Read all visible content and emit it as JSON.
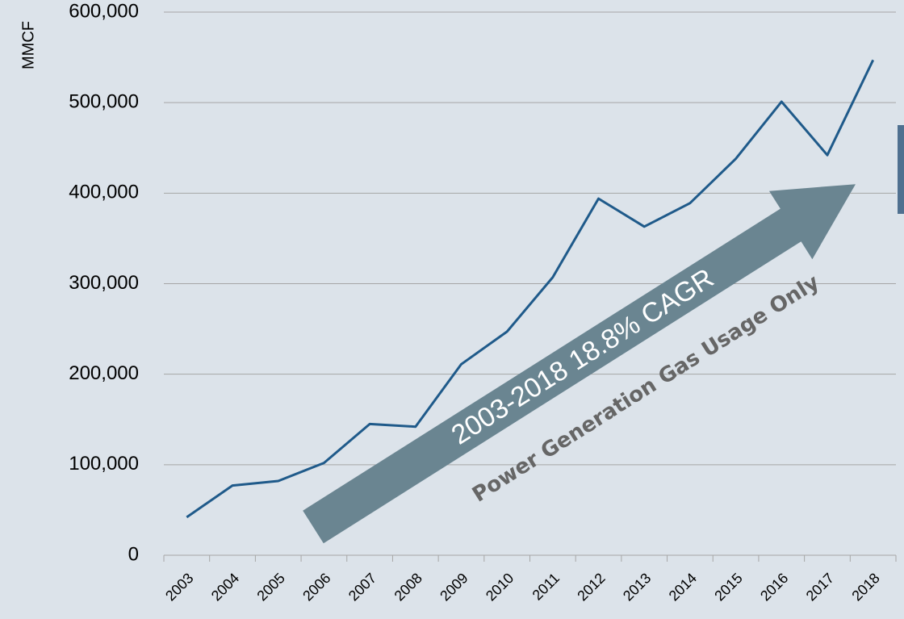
{
  "chart_data": {
    "type": "line",
    "y_label": "MMCF",
    "categories": [
      "2003",
      "2004",
      "2005",
      "2006",
      "2007",
      "2008",
      "2009",
      "2010",
      "2011",
      "2012",
      "2013",
      "2014",
      "2015",
      "2016",
      "2017",
      "2018"
    ],
    "series": [
      {
        "name": "Power Generation Gas Usage",
        "color": "#1f5a8a",
        "values": [
          42000,
          77000,
          82000,
          102000,
          145000,
          142000,
          211000,
          247000,
          307000,
          394000,
          363000,
          389000,
          438000,
          501000,
          442000,
          547000
        ]
      }
    ],
    "ylim": [
      0,
      600000
    ],
    "yticks": [
      0,
      {
        "value": 100000,
        "label": "100,000"
      },
      {
        "value": 200000,
        "label": "200,000"
      },
      {
        "value": 300000,
        "label": "300,000"
      },
      {
        "value": 400000,
        "label": "400,000"
      },
      {
        "value": 500000,
        "label": "500,000"
      },
      {
        "value": 600000,
        "label": "600,000"
      }
    ],
    "grid": true,
    "annotations": [
      "2003-2018 18.8% CAGR",
      "Power Generation Gas Usage Only"
    ]
  }
}
